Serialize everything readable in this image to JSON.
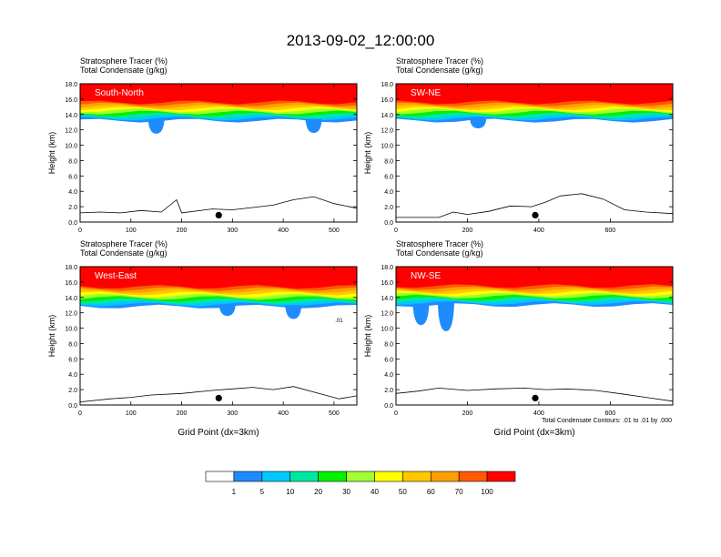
{
  "title": "2013-09-02_12:00:00",
  "footnote": "Total Condensate Contours: .01 to .01 by .000",
  "chart_data": [
    {
      "type": "heatmap",
      "panel_label": "South-North",
      "subtitle_line1": "Stratosphere Tracer   (%)",
      "subtitle_line2": "Total Condensate   (g/kg)",
      "xlabel": "",
      "ylabel": "Height (km)",
      "xlim": [
        0,
        545
      ],
      "ylim": [
        0,
        18
      ],
      "x_ticks": [
        "0",
        "100",
        "200",
        "300",
        "400",
        "500"
      ],
      "y_ticks": [
        "0.0",
        "2.0",
        "4.0",
        "6.0",
        "8.0",
        "10.0",
        "12.0",
        "14.0",
        "16.0",
        "18.0"
      ],
      "tracer_base_km": 13.2,
      "marker_x": 273,
      "terrain": [
        [
          0,
          1.2
        ],
        [
          40,
          1.3
        ],
        [
          80,
          1.2
        ],
        [
          120,
          1.5
        ],
        [
          160,
          1.3
        ],
        [
          190,
          2.9
        ],
        [
          200,
          1.2
        ],
        [
          260,
          1.7
        ],
        [
          300,
          1.6
        ],
        [
          340,
          1.9
        ],
        [
          380,
          2.2
        ],
        [
          420,
          2.9
        ],
        [
          460,
          3.3
        ],
        [
          500,
          2.4
        ],
        [
          545,
          1.8
        ]
      ],
      "intrusions": [
        [
          150,
          11.5
        ],
        [
          460,
          11.6
        ]
      ]
    },
    {
      "type": "heatmap",
      "panel_label": "SW-NE",
      "subtitle_line1": "Stratosphere Tracer   (%)",
      "subtitle_line2": "Total Condensate   (g/kg)",
      "xlabel": "",
      "ylabel": "Height (km)",
      "xlim": [
        0,
        775
      ],
      "ylim": [
        0,
        18
      ],
      "x_ticks": [
        "0",
        "200",
        "400",
        "600"
      ],
      "y_ticks": [
        "0.0",
        "2.0",
        "4.0",
        "6.0",
        "8.0",
        "10.0",
        "12.0",
        "14.0",
        "16.0",
        "18.0"
      ],
      "tracer_base_km": 13.2,
      "marker_x": 390,
      "terrain": [
        [
          0,
          0.6
        ],
        [
          120,
          0.6
        ],
        [
          160,
          1.3
        ],
        [
          200,
          1.0
        ],
        [
          260,
          1.4
        ],
        [
          320,
          2.1
        ],
        [
          380,
          2.0
        ],
        [
          420,
          2.6
        ],
        [
          460,
          3.4
        ],
        [
          520,
          3.7
        ],
        [
          580,
          3.0
        ],
        [
          640,
          1.6
        ],
        [
          700,
          1.3
        ],
        [
          775,
          1.1
        ]
      ],
      "intrusions": [
        [
          230,
          12.2
        ]
      ]
    },
    {
      "type": "heatmap",
      "panel_label": "West-East",
      "subtitle_line1": "Stratosphere Tracer   (%)",
      "subtitle_line2": "Total Condensate   (g/kg)",
      "xlabel": "Grid Point (dx=3km)",
      "ylabel": "Height (km)",
      "xlim": [
        0,
        545
      ],
      "ylim": [
        0,
        18
      ],
      "x_ticks": [
        "0",
        "100",
        "200",
        "300",
        "400",
        "500"
      ],
      "y_ticks": [
        "0.0",
        "2.0",
        "4.0",
        "6.0",
        "8.0",
        "10.0",
        "12.0",
        "14.0",
        "16.0",
        "18.0"
      ],
      "tracer_base_km": 12.8,
      "marker_x": 273,
      "contour_label": ".01",
      "terrain": [
        [
          0,
          0.4
        ],
        [
          60,
          0.8
        ],
        [
          100,
          1.0
        ],
        [
          140,
          1.3
        ],
        [
          200,
          1.5
        ],
        [
          260,
          1.9
        ],
        [
          300,
          2.1
        ],
        [
          340,
          2.3
        ],
        [
          380,
          2.0
        ],
        [
          420,
          2.4
        ],
        [
          470,
          1.5
        ],
        [
          510,
          0.8
        ],
        [
          545,
          1.2
        ]
      ],
      "intrusions": [
        [
          290,
          11.6
        ],
        [
          420,
          11.2
        ]
      ]
    },
    {
      "type": "heatmap",
      "panel_label": "NW-SE",
      "subtitle_line1": "Stratosphere Tracer   (%)",
      "subtitle_line2": "Total Condensate   (g/kg)",
      "xlabel": "Grid Point (dx=3km)",
      "ylabel": "Height (km)",
      "xlim": [
        0,
        775
      ],
      "ylim": [
        0,
        18
      ],
      "x_ticks": [
        "0",
        "200",
        "400",
        "600"
      ],
      "y_ticks": [
        "0.0",
        "2.0",
        "4.0",
        "6.0",
        "8.0",
        "10.0",
        "12.0",
        "14.0",
        "16.0",
        "18.0"
      ],
      "tracer_base_km": 13.0,
      "marker_x": 390,
      "terrain": [
        [
          0,
          1.5
        ],
        [
          60,
          1.8
        ],
        [
          120,
          2.2
        ],
        [
          200,
          1.9
        ],
        [
          280,
          2.1
        ],
        [
          360,
          2.2
        ],
        [
          420,
          2.0
        ],
        [
          480,
          2.1
        ],
        [
          560,
          1.9
        ],
        [
          640,
          1.4
        ],
        [
          700,
          1.0
        ],
        [
          775,
          0.5
        ]
      ],
      "intrusions": [
        [
          70,
          10.4
        ],
        [
          140,
          9.6
        ]
      ]
    }
  ],
  "colorbar": {
    "labels": [
      "1",
      "5",
      "10",
      "20",
      "30",
      "40",
      "50",
      "60",
      "70",
      "100"
    ],
    "colors": [
      "#ffffff",
      "#1e8cff",
      "#00c8ff",
      "#00e8a0",
      "#00f000",
      "#a0ff30",
      "#ffff00",
      "#ffc800",
      "#ffa000",
      "#ff5a00",
      "#ff0000"
    ]
  }
}
